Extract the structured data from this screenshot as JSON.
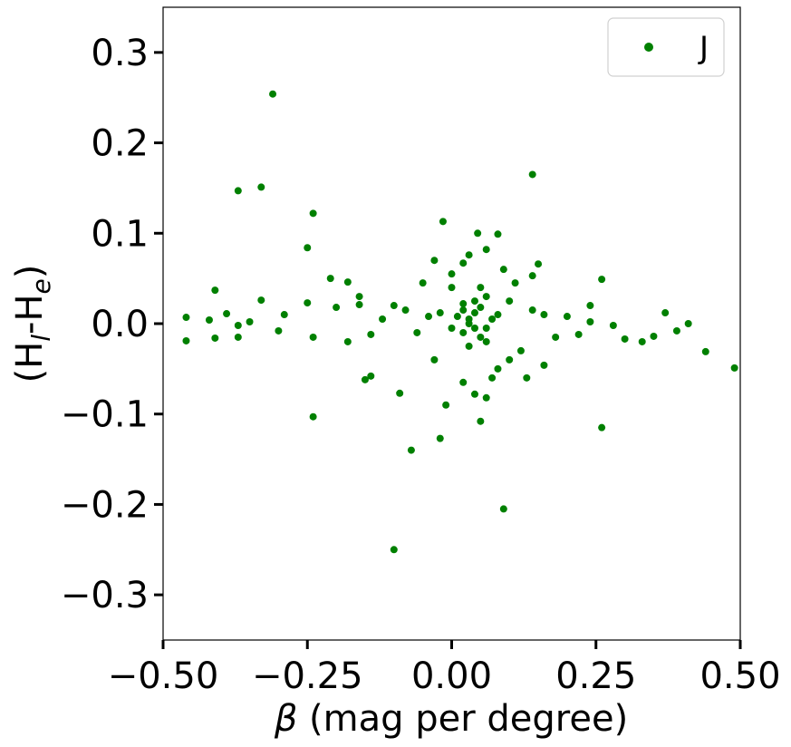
{
  "chart_data": {
    "type": "scatter",
    "xlabel_symbol": "β",
    "xlabel_text": " (mag per degree)",
    "ylabel_parts": [
      "(H",
      "l",
      "-H",
      "e",
      ")"
    ],
    "xlim": [
      -0.5,
      0.5
    ],
    "ylim": [
      -0.35,
      0.35
    ],
    "x_ticks": [
      -0.5,
      -0.25,
      0.0,
      0.25,
      0.5
    ],
    "x_tick_labels": [
      "−0.50",
      "−0.25",
      "0.00",
      "0.25",
      "0.50"
    ],
    "y_ticks": [
      0.3,
      0.2,
      0.1,
      0.0,
      -0.1,
      -0.2,
      -0.3
    ],
    "y_tick_labels": [
      "0.3",
      "0.2",
      "0.1",
      "0.0",
      "−0.1",
      "−0.2",
      "−0.3"
    ],
    "grid": false,
    "legend": {
      "placement": "top-right",
      "entries": [
        {
          "label": "J",
          "color": "#008000"
        }
      ]
    },
    "series": [
      {
        "name": "J",
        "color": "#008000",
        "points": [
          [
            -0.31,
            0.254
          ],
          [
            -0.37,
            0.147
          ],
          [
            -0.33,
            0.151
          ],
          [
            0.14,
            0.165
          ],
          [
            -0.24,
            0.122
          ],
          [
            -0.25,
            0.084
          ],
          [
            -0.015,
            0.113
          ],
          [
            0.045,
            0.1
          ],
          [
            0.08,
            0.099
          ],
          [
            -0.41,
            0.037
          ],
          [
            -0.21,
            0.05
          ],
          [
            -0.18,
            0.046
          ],
          [
            -0.33,
            0.026
          ],
          [
            -0.25,
            0.023
          ],
          [
            -0.39,
            0.011
          ],
          [
            -0.46,
            0.007
          ],
          [
            -0.42,
            0.004
          ],
          [
            -0.35,
            0.002
          ],
          [
            -0.37,
            -0.002
          ],
          [
            -0.3,
            -0.008
          ],
          [
            -0.41,
            -0.016
          ],
          [
            -0.37,
            -0.015
          ],
          [
            -0.46,
            -0.019
          ],
          [
            -0.24,
            -0.015
          ],
          [
            -0.29,
            0.01
          ],
          [
            -0.2,
            0.018
          ],
          [
            -0.16,
            0.021
          ],
          [
            -0.15,
            -0.062
          ],
          [
            -0.14,
            -0.058
          ],
          [
            -0.24,
            -0.103
          ],
          [
            -0.09,
            -0.077
          ],
          [
            -0.07,
            -0.14
          ],
          [
            -0.02,
            -0.127
          ],
          [
            0.05,
            -0.108
          ],
          [
            0.26,
            -0.115
          ],
          [
            0.09,
            -0.205
          ],
          [
            -0.1,
            -0.25
          ],
          [
            0.49,
            -0.049
          ],
          [
            0.44,
            -0.031
          ],
          [
            0.41,
            0.0
          ],
          [
            0.39,
            -0.008
          ],
          [
            0.37,
            0.012
          ],
          [
            0.35,
            -0.014
          ],
          [
            0.33,
            -0.02
          ],
          [
            0.3,
            -0.017
          ],
          [
            0.28,
            -0.002
          ],
          [
            0.26,
            0.049
          ],
          [
            0.24,
            0.02
          ],
          [
            0.15,
            0.066
          ],
          [
            0.14,
            0.053
          ],
          [
            0.16,
            -0.046
          ],
          [
            0.13,
            -0.06
          ],
          [
            0.06,
            -0.082
          ],
          [
            0.04,
            -0.078
          ],
          [
            -0.01,
            -0.09
          ],
          [
            0.03,
            0.076
          ],
          [
            0.09,
            0.06
          ],
          [
            0.06,
            0.082
          ],
          [
            -0.03,
            0.07
          ],
          [
            0.02,
            0.067
          ],
          [
            0.0,
            0.055
          ],
          [
            0.05,
            0.04
          ],
          [
            0.04,
            0.025
          ],
          [
            0.06,
            0.03
          ],
          [
            0.02,
            0.015
          ],
          [
            0.03,
            0.005
          ],
          [
            0.04,
            -0.005
          ],
          [
            0.05,
            -0.015
          ],
          [
            0.02,
            -0.01
          ],
          [
            0.03,
            0.0
          ],
          [
            0.01,
            0.008
          ],
          [
            0.04,
            0.012
          ],
          [
            0.06,
            -0.02
          ],
          [
            0.07,
            0.005
          ],
          [
            0.03,
            -0.025
          ],
          [
            0.05,
            0.018
          ],
          [
            0.08,
            0.01
          ],
          [
            0.0,
            -0.005
          ],
          [
            0.02,
            0.022
          ],
          [
            0.06,
            -0.005
          ],
          [
            -0.02,
            0.012
          ],
          [
            -0.04,
            0.008
          ],
          [
            -0.06,
            -0.01
          ],
          [
            -0.08,
            0.015
          ],
          [
            -0.1,
            0.02
          ],
          [
            -0.12,
            0.005
          ],
          [
            -0.14,
            -0.012
          ],
          [
            -0.16,
            0.03
          ],
          [
            -0.18,
            -0.02
          ],
          [
            0.1,
            0.025
          ],
          [
            0.12,
            -0.03
          ],
          [
            0.14,
            0.015
          ],
          [
            0.16,
            0.01
          ],
          [
            0.18,
            -0.015
          ],
          [
            0.2,
            0.008
          ],
          [
            0.22,
            -0.012
          ],
          [
            0.24,
            0.002
          ],
          [
            0.1,
            -0.04
          ],
          [
            0.08,
            -0.05
          ],
          [
            0.0,
            0.04
          ],
          [
            -0.03,
            -0.04
          ],
          [
            -0.05,
            0.045
          ],
          [
            0.11,
            0.045
          ],
          [
            0.07,
            -0.06
          ],
          [
            0.02,
            -0.065
          ]
        ]
      }
    ]
  }
}
